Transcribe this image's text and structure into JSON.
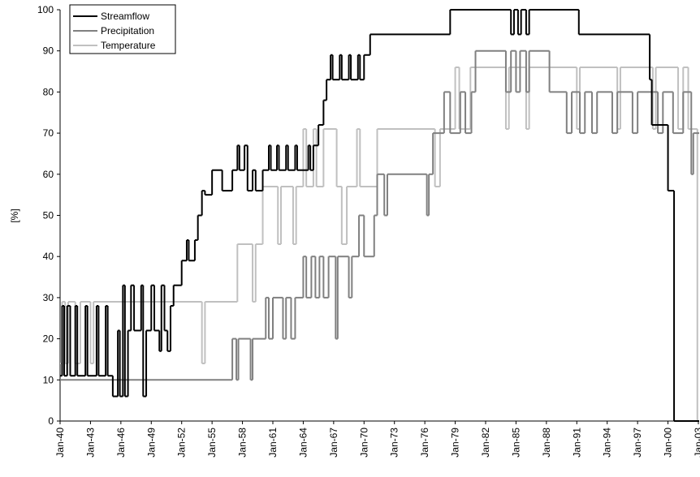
{
  "chart_data": {
    "type": "step",
    "y_label": "[%]",
    "legend": "upper left",
    "grid": false,
    "xlim": [
      1940,
      2003
    ],
    "ylim": [
      0,
      100
    ],
    "yticks": [
      0,
      10,
      20,
      30,
      40,
      50,
      60,
      70,
      80,
      90,
      100
    ],
    "xticks": [
      {
        "value": 1940,
        "label": "Jan-40"
      },
      {
        "value": 1943,
        "label": "Jan-43"
      },
      {
        "value": 1946,
        "label": "Jan-46"
      },
      {
        "value": 1949,
        "label": "Jan-49"
      },
      {
        "value": 1952,
        "label": "Jan-52"
      },
      {
        "value": 1955,
        "label": "Jan-55"
      },
      {
        "value": 1958,
        "label": "Jan-58"
      },
      {
        "value": 1961,
        "label": "Jan-61"
      },
      {
        "value": 1964,
        "label": "Jan-64"
      },
      {
        "value": 1967,
        "label": "Jan-67"
      },
      {
        "value": 1970,
        "label": "Jan-70"
      },
      {
        "value": 1973,
        "label": "Jan-73"
      },
      {
        "value": 1976,
        "label": "Jan-76"
      },
      {
        "value": 1979,
        "label": "Jan-79"
      },
      {
        "value": 1982,
        "label": "Jan-82"
      },
      {
        "value": 1985,
        "label": "Jan-85"
      },
      {
        "value": 1988,
        "label": "Jan-88"
      },
      {
        "value": 1991,
        "label": "Jan-91"
      },
      {
        "value": 1994,
        "label": "Jan-94"
      },
      {
        "value": 1997,
        "label": "Jan-97"
      },
      {
        "value": 2000,
        "label": "Jan-00"
      },
      {
        "value": 2003,
        "label": "Jan-03"
      }
    ],
    "series": [
      {
        "name": "Streamflow",
        "color": "#000000",
        "x": [
          1940.0,
          1940.2,
          1940.4,
          1940.7,
          1941.0,
          1941.5,
          1941.7,
          1942.5,
          1942.7,
          1943.6,
          1943.8,
          1944.5,
          1944.7,
          1945.2,
          1945.7,
          1945.9,
          1946.2,
          1946.4,
          1946.7,
          1947.0,
          1947.3,
          1948.0,
          1948.2,
          1948.5,
          1949.0,
          1949.3,
          1949.8,
          1950.0,
          1950.3,
          1950.6,
          1950.9,
          1951.2,
          1952.0,
          1952.5,
          1952.7,
          1953.3,
          1953.6,
          1954.0,
          1954.3,
          1955.0,
          1956.0,
          1957.0,
          1957.5,
          1957.7,
          1958.2,
          1958.5,
          1959.0,
          1959.3,
          1960.0,
          1960.6,
          1960.8,
          1961.4,
          1961.6,
          1962.3,
          1962.5,
          1963.2,
          1963.4,
          1964.5,
          1964.7,
          1965.0,
          1965.5,
          1966.0,
          1966.3,
          1966.7,
          1966.9,
          1967.6,
          1967.8,
          1968.5,
          1968.7,
          1969.4,
          1969.6,
          1970.0,
          1970.6,
          1978.5,
          1984.5,
          1984.8,
          1985.2,
          1985.5,
          1986.0,
          1986.3,
          1991.2,
          1998.2,
          1998.4,
          2000.0,
          2000.6,
          2003.0
        ],
        "values": [
          11,
          28,
          11,
          28,
          11,
          28,
          11,
          28,
          11,
          28,
          11,
          28,
          11,
          6,
          22,
          6,
          33,
          6,
          22,
          33,
          22,
          33,
          6,
          22,
          33,
          22,
          17,
          33,
          22,
          17,
          28,
          33,
          39,
          44,
          39,
          44,
          50,
          56,
          55,
          61,
          56,
          61,
          67,
          61,
          67,
          56,
          61,
          56,
          61,
          67,
          61,
          67,
          61,
          67,
          61,
          67,
          61,
          67,
          61,
          67,
          72,
          78,
          83,
          89,
          83,
          89,
          83,
          89,
          83,
          89,
          83,
          89,
          94,
          100,
          94,
          100,
          94,
          100,
          94,
          100,
          94,
          83,
          72,
          56,
          0,
          0
        ]
      },
      {
        "name": "Precipitation",
        "color": "#808080",
        "x": [
          1940.0,
          1957.0,
          1957.4,
          1957.6,
          1958.8,
          1959.0,
          1960.3,
          1960.6,
          1961.0,
          1962.0,
          1962.3,
          1962.8,
          1963.2,
          1964.0,
          1964.3,
          1964.8,
          1965.2,
          1965.6,
          1966.0,
          1966.5,
          1967.2,
          1967.4,
          1968.5,
          1968.8,
          1969.5,
          1970.0,
          1971.0,
          1971.3,
          1972.0,
          1972.3,
          1976.2,
          1976.4,
          1976.8,
          1977.9,
          1978.5,
          1979.5,
          1980.0,
          1980.6,
          1981.0,
          1984.0,
          1984.5,
          1985.0,
          1985.4,
          1986.0,
          1986.3,
          1988.3,
          1990.0,
          1990.5,
          1991.3,
          1991.8,
          1992.5,
          1993.0,
          1994.5,
          1995.0,
          1996.5,
          1997.0,
          1999.0,
          1999.5,
          2000.5,
          2001.5,
          2002.3,
          2002.5,
          2003.0
        ],
        "values": [
          10,
          20,
          10,
          20,
          10,
          20,
          30,
          20,
          30,
          20,
          30,
          20,
          30,
          40,
          30,
          40,
          30,
          40,
          30,
          40,
          20,
          40,
          30,
          40,
          50,
          40,
          50,
          60,
          50,
          60,
          50,
          60,
          70,
          80,
          70,
          80,
          70,
          80,
          90,
          80,
          90,
          80,
          90,
          80,
          90,
          80,
          70,
          80,
          70,
          80,
          70,
          80,
          70,
          80,
          70,
          80,
          70,
          80,
          70,
          80,
          60,
          70,
          70
        ]
      },
      {
        "name": "Temperature",
        "color": "#c0c0c0",
        "x": [
          1940.0,
          1940.2,
          1940.5,
          1940.8,
          1941.5,
          1942.0,
          1943.0,
          1943.3,
          1954.0,
          1954.3,
          1957.5,
          1959.0,
          1959.3,
          1960.0,
          1961.5,
          1961.8,
          1963.0,
          1963.3,
          1964.0,
          1964.3,
          1965.0,
          1965.3,
          1966.0,
          1967.3,
          1967.8,
          1968.3,
          1969.3,
          1969.6,
          1971.3,
          1977.0,
          1977.5,
          1979.0,
          1979.4,
          1980.5,
          1984.0,
          1984.3,
          1986.0,
          1986.3,
          1991.0,
          1991.3,
          1995.0,
          1995.3,
          1998.5,
          1998.8,
          2001.0,
          2001.5,
          2002.0,
          2002.9
        ],
        "values": [
          14,
          29,
          14,
          29,
          14,
          29,
          14,
          29,
          14,
          29,
          43,
          29,
          43,
          57,
          43,
          57,
          43,
          57,
          71,
          57,
          71,
          57,
          71,
          57,
          43,
          57,
          71,
          57,
          71,
          57,
          71,
          86,
          71,
          86,
          71,
          86,
          71,
          86,
          71,
          86,
          71,
          86,
          71,
          86,
          71,
          86,
          71,
          0
        ]
      }
    ]
  }
}
